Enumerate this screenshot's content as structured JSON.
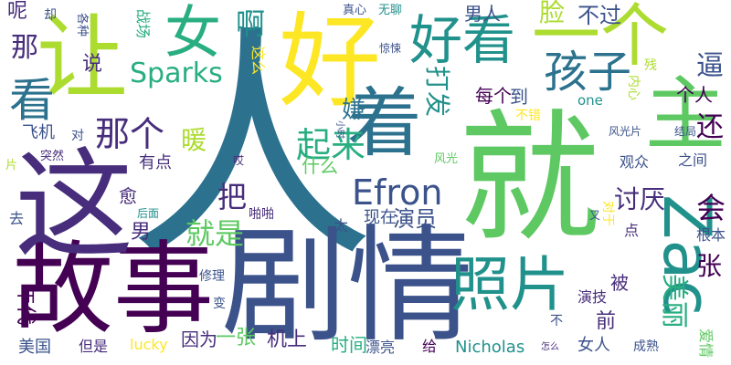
{
  "colors": {
    "background": "#ffffff",
    "palette": [
      "#440154",
      "#472d7b",
      "#3b528b",
      "#2c728e",
      "#21918c",
      "#28ae80",
      "#5ec962",
      "#addc30",
      "#fde725"
    ]
  },
  "words": [
    {
      "text": "人"
    },
    {
      "text": "就"
    },
    {
      "text": "剧情"
    },
    {
      "text": "好"
    },
    {
      "text": "故事"
    },
    {
      "text": "这"
    },
    {
      "text": "一个"
    },
    {
      "text": "让"
    },
    {
      "text": "主"
    },
    {
      "text": "着"
    },
    {
      "text": "照片"
    },
    {
      "text": "好看"
    },
    {
      "text": "女"
    },
    {
      "text": "Zac"
    },
    {
      "text": "孩子"
    },
    {
      "text": "Efron"
    },
    {
      "text": "看"
    },
    {
      "text": "Sparks"
    },
    {
      "text": "那个"
    },
    {
      "text": "起来"
    },
    {
      "text": "就是"
    },
    {
      "text": "啊"
    },
    {
      "text": "把"
    },
    {
      "text": "脸"
    },
    {
      "text": "暖"
    },
    {
      "text": "那"
    },
    {
      "text": "逼"
    },
    {
      "text": "嫌"
    },
    {
      "text": "还"
    },
    {
      "text": "不过"
    },
    {
      "text": "男人"
    },
    {
      "text": "讨厌"
    },
    {
      "text": "打发"
    },
    {
      "text": "演员"
    },
    {
      "text": "美丽"
    },
    {
      "text": "张"
    },
    {
      "text": "会"
    },
    {
      "text": "个人"
    },
    {
      "text": "每个"
    },
    {
      "text": "到"
    },
    {
      "text": "战场"
    },
    {
      "text": "这么"
    },
    {
      "text": "拍"
    },
    {
      "text": "什么"
    },
    {
      "text": "有点"
    },
    {
      "text": "飞机"
    },
    {
      "text": "说"
    },
    {
      "text": "呢"
    },
    {
      "text": "男"
    },
    {
      "text": "愈"
    },
    {
      "text": "年代"
    },
    {
      "text": "一张"
    },
    {
      "text": "因为"
    },
    {
      "text": "机上"
    },
    {
      "text": "时间"
    },
    {
      "text": "现在"
    },
    {
      "text": "演技"
    },
    {
      "text": "被"
    },
    {
      "text": "前"
    },
    {
      "text": "女人"
    },
    {
      "text": "美国"
    },
    {
      "text": "Nicholas"
    },
    {
      "text": "观众"
    },
    {
      "text": "之间"
    },
    {
      "text": "爱情"
    },
    {
      "text": "根本"
    },
    {
      "text": "去"
    },
    {
      "text": "对"
    },
    {
      "text": "真心"
    },
    {
      "text": "无聊"
    },
    {
      "text": "却"
    },
    {
      "text": "各种"
    },
    {
      "text": "惊悚"
    },
    {
      "text": "小时"
    },
    {
      "text": "不错"
    },
    {
      "text": "one"
    },
    {
      "text": "内心"
    },
    {
      "text": "残"
    },
    {
      "text": "风光片"
    },
    {
      "text": "结局"
    },
    {
      "text": "风光"
    },
    {
      "text": "突然"
    },
    {
      "text": "片"
    },
    {
      "text": "后面"
    },
    {
      "text": "啪啪"
    },
    {
      "text": "哎"
    },
    {
      "text": "太"
    },
    {
      "text": "对于"
    },
    {
      "text": "又"
    },
    {
      "text": "点"
    },
    {
      "text": "修理"
    },
    {
      "text": "变"
    },
    {
      "text": "漂亮"
    },
    {
      "text": "给"
    },
    {
      "text": "但是"
    },
    {
      "text": "lucky"
    },
    {
      "text": "怎么"
    },
    {
      "text": "成熟"
    },
    {
      "text": "不"
    }
  ]
}
